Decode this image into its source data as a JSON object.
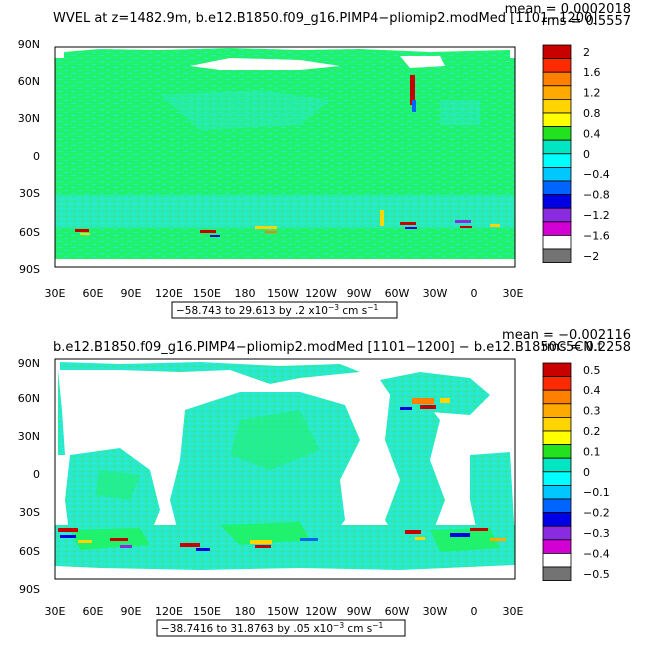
{
  "panels": [
    {
      "title": "WVEL at z=1482.9m, b.e12.B1850.f09_g16.PIMP4−pliomip2.modMed [1101−1200]",
      "mean": "mean = 0.0002018",
      "rms": "rms = 0.5557",
      "lat_ticks": [
        "90N",
        "60N",
        "30N",
        "0",
        "30S",
        "60S",
        "90S"
      ],
      "lon_ticks": [
        "30E",
        "60E",
        "90E",
        "120E",
        "150E",
        "180",
        "150W",
        "120W",
        "90W",
        "60W",
        "30W",
        "0",
        "30E"
      ],
      "colorbar_labels": [
        "2",
        "1.6",
        "1.2",
        "0.8",
        "0.4",
        "0",
        "−0.4",
        "−0.8",
        "−1.2",
        "−1.6",
        "−2"
      ],
      "range_text": "−58.743 to 29.613 by .2 x10",
      "range_exp": "−3",
      "range_units": " cm s",
      "range_units_exp": "−1"
    },
    {
      "title": "b.e12.B1850.f09_g16.PIMP4−pliomip2.modMed [1101−1200] − b.e12.B1850C5CN.f",
      "mean": "mean = −0.002116",
      "rms": "rms = 0.2258",
      "lat_ticks": [
        "90N",
        "60N",
        "30N",
        "0",
        "30S",
        "60S",
        "90S"
      ],
      "lon_ticks": [
        "30E",
        "60E",
        "90E",
        "120E",
        "150E",
        "180",
        "150W",
        "120W",
        "90W",
        "60W",
        "30W",
        "0",
        "30E"
      ],
      "colorbar_labels": [
        "0.5",
        "0.4",
        "0.3",
        "0.2",
        "0.1",
        "0",
        "−0.1",
        "−0.2",
        "−0.3",
        "−0.4",
        "−0.5"
      ],
      "range_text": "−38.7416 to 31.8763 by .05 x10",
      "range_exp": "−3",
      "range_units": " cm s",
      "range_units_exp": "−1"
    }
  ],
  "colors": {
    "ocean_zero": "#21f26e",
    "ocean_nearzero": "#2de7c8",
    "land": "#ffffff",
    "colorbar": [
      "#c80000",
      "#ff2a00",
      "#ff7f00",
      "#ffaa00",
      "#ffd400",
      "#ffff00",
      "#22e11e",
      "#00e6c3",
      "#00ffff",
      "#00c8ff",
      "#0064ff",
      "#0000e6",
      "#8a2be2",
      "#d200d2",
      "#ffffff",
      "#737373"
    ]
  }
}
